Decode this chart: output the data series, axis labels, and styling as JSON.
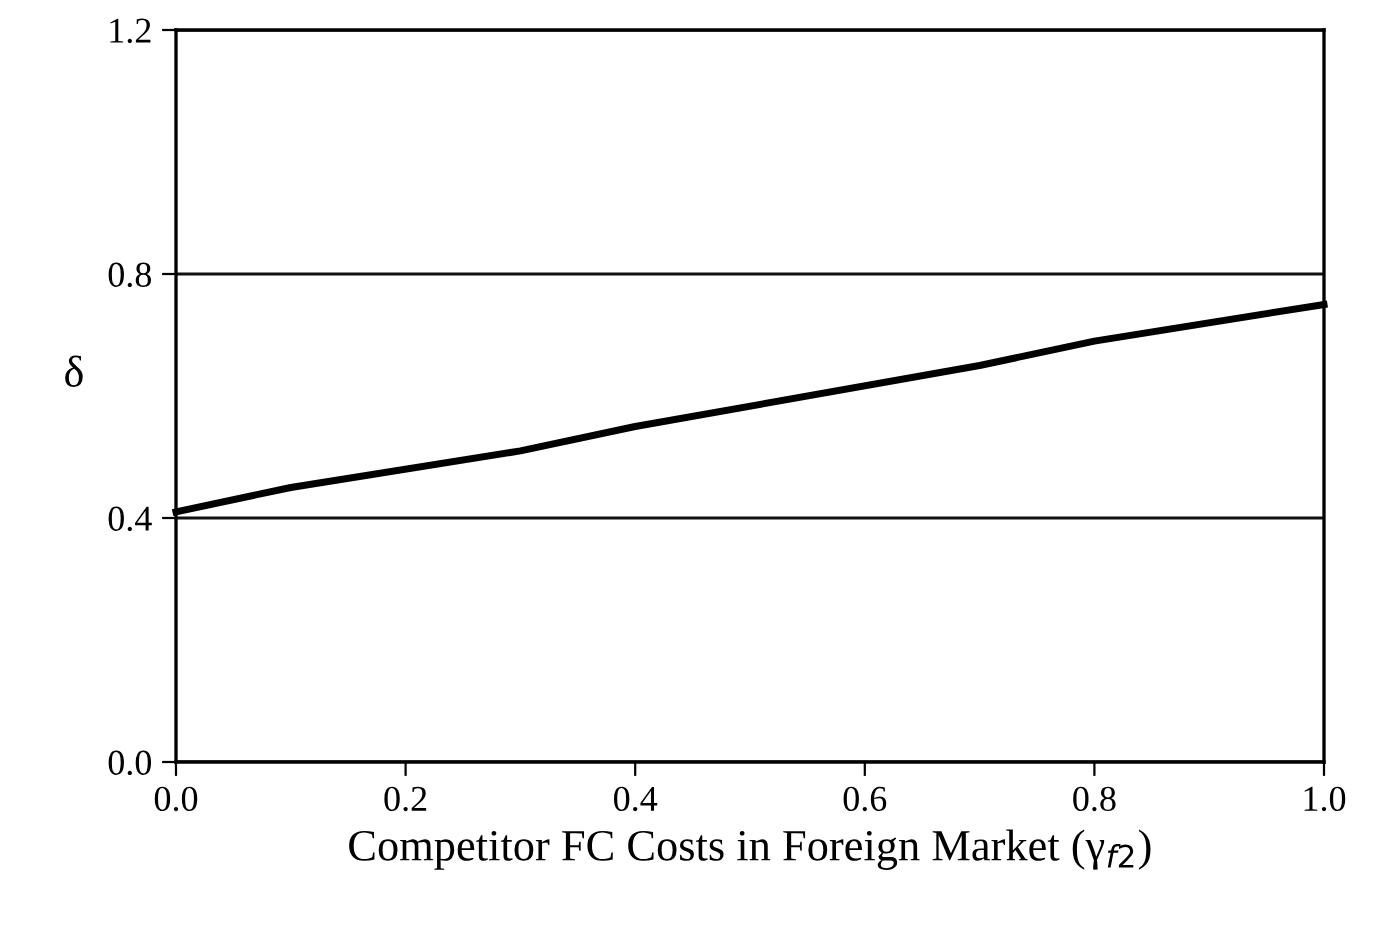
{
  "chart_data": {
    "type": "line",
    "xlabel": "Competitor FC Costs in Foreign Market (γ$_{f2}$)",
    "ylabel": "δ",
    "series": [
      {
        "color": "#000000",
        "x": [
          0.0,
          0.1,
          0.3,
          0.4,
          0.7,
          0.8,
          1.0
        ],
        "values": [
          0.41,
          0.45,
          0.51,
          0.55,
          0.65,
          0.69,
          0.75
        ]
      }
    ],
    "xlim": [
      0.0,
      1.0
    ],
    "xticks": [
      {
        "value": 0.0,
        "label": "0.0"
      },
      0.2,
      0.4,
      0.6,
      0.8,
      {
        "value": 1.0,
        "label": "1.0"
      }
    ],
    "ylim": [
      0.0,
      1.2
    ],
    "yticks": [
      {
        "value": 0.0,
        "label": "0.0"
      },
      0.4,
      0.8,
      1.2
    ],
    "grid": "y",
    "line_style": "solid",
    "marker": "none",
    "legend": false
  }
}
